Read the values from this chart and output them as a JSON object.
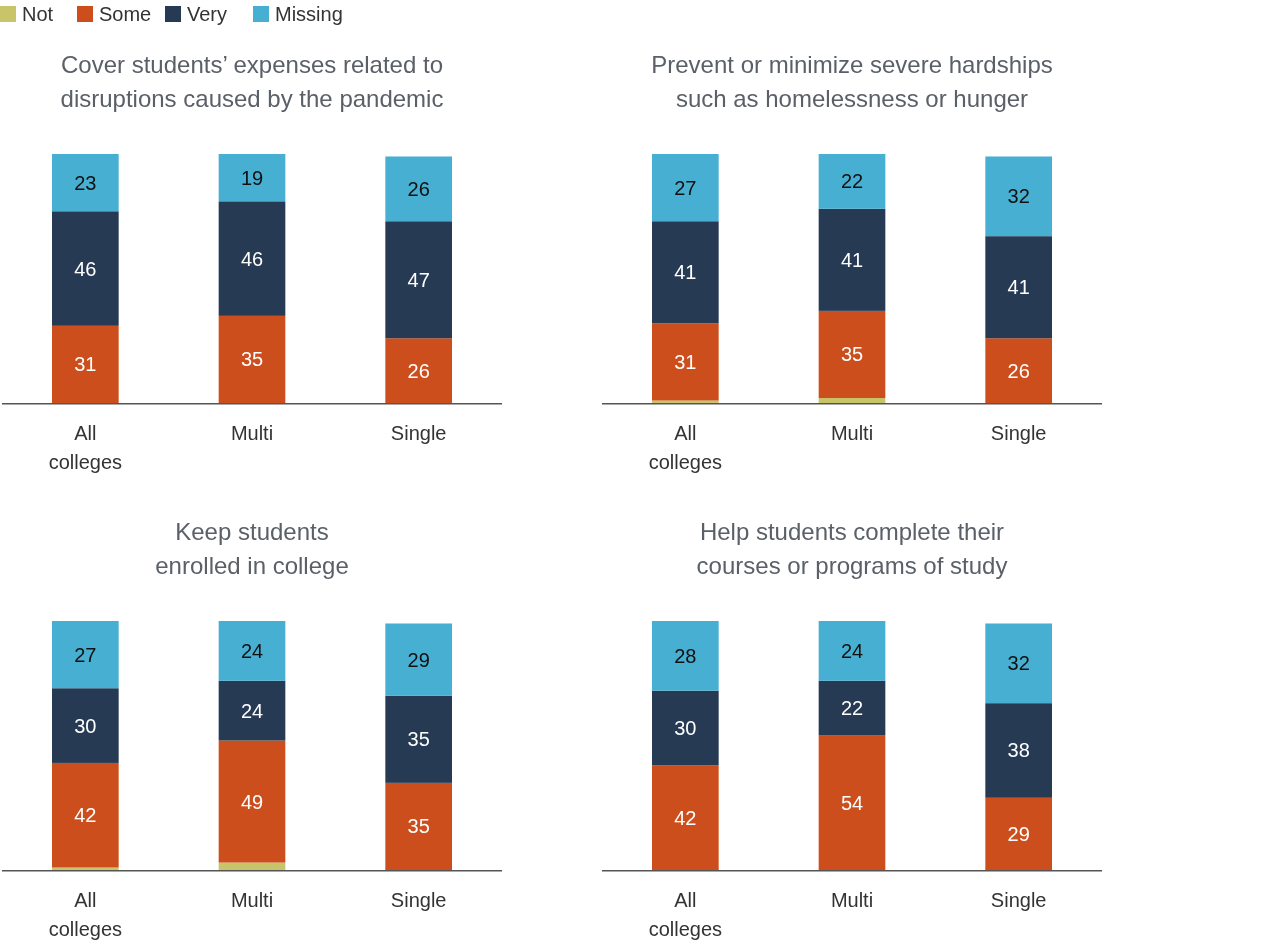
{
  "chart_data": [
    {
      "type": "bar",
      "stacked": true,
      "legend": "top left",
      "title": "Cover students’ expenses related to disruptions caused by the pandemic",
      "categories": [
        "All colleges",
        "Multi",
        "Single"
      ],
      "series": [
        {
          "name": "Not",
          "color": "#c8c46a",
          "values": [
            0,
            0,
            0
          ],
          "value_labels": [
            null,
            null,
            null
          ]
        },
        {
          "name": "Some",
          "color": "#cc4e1c",
          "values": [
            31,
            35,
            26
          ],
          "value_labels": [
            "31",
            "35",
            "26"
          ]
        },
        {
          "name": "Very",
          "color": "#263a54",
          "values": [
            46,
            46,
            47
          ],
          "value_labels": [
            "46",
            "46",
            "47"
          ]
        },
        {
          "name": "Missing",
          "color": "#46afd2",
          "values": [
            23,
            19,
            26
          ],
          "value_labels": [
            "23",
            "19",
            "26"
          ]
        }
      ]
    },
    {
      "type": "bar",
      "stacked": true,
      "title": "Prevent or minimize severe hardships such as homelessness or hunger",
      "categories": [
        "All colleges",
        "Multi",
        "Single"
      ],
      "series": [
        {
          "color": "#c8c46a",
          "values": [
            1,
            2,
            0
          ],
          "value_labels": [
            null,
            null,
            null
          ]
        },
        {
          "color": "#cc4e1c",
          "values": [
            31,
            35,
            26
          ],
          "value_labels": [
            "31",
            "35",
            "26"
          ]
        },
        {
          "color": "#263a54",
          "values": [
            41,
            41,
            41
          ],
          "value_labels": [
            "41",
            "41",
            "41"
          ]
        },
        {
          "color": "#46afd2",
          "values": [
            27,
            22,
            32
          ],
          "value_labels": [
            "27",
            "22",
            "32"
          ]
        }
      ]
    },
    {
      "type": "bar",
      "stacked": true,
      "title": "Keep students enrolled in college",
      "categories": [
        "All colleges",
        "Multi",
        "Single"
      ],
      "series": [
        {
          "color": "#c8c46a",
          "values": [
            1,
            3,
            0
          ],
          "value_labels": [
            null,
            null,
            null
          ]
        },
        {
          "color": "#cc4e1c",
          "values": [
            42,
            49,
            35
          ],
          "value_labels": [
            "42",
            "49",
            "35"
          ]
        },
        {
          "color": "#263a54",
          "values": [
            30,
            24,
            35
          ],
          "value_labels": [
            "30",
            "24",
            "35"
          ]
        },
        {
          "color": "#46afd2",
          "values": [
            27,
            24,
            29
          ],
          "value_labels": [
            "27",
            "24",
            "29"
          ]
        }
      ]
    },
    {
      "type": "bar",
      "stacked": true,
      "title": "Help students complete their courses or programs of study",
      "categories": [
        "All colleges",
        "Multi",
        "Single"
      ],
      "series": [
        {
          "color": "#c8c46a",
          "values": [
            0,
            0,
            0
          ],
          "value_labels": [
            null,
            null,
            null
          ]
        },
        {
          "color": "#cc4e1c",
          "values": [
            42,
            54,
            29
          ],
          "value_labels": [
            "42",
            "54",
            "29"
          ]
        },
        {
          "color": "#263a54",
          "values": [
            30,
            22,
            38
          ],
          "value_labels": [
            "30",
            "22",
            "38"
          ]
        },
        {
          "color": "#46afd2",
          "values": [
            28,
            24,
            32
          ],
          "value_labels": [
            "28",
            "24",
            "32"
          ]
        }
      ]
    }
  ]
}
